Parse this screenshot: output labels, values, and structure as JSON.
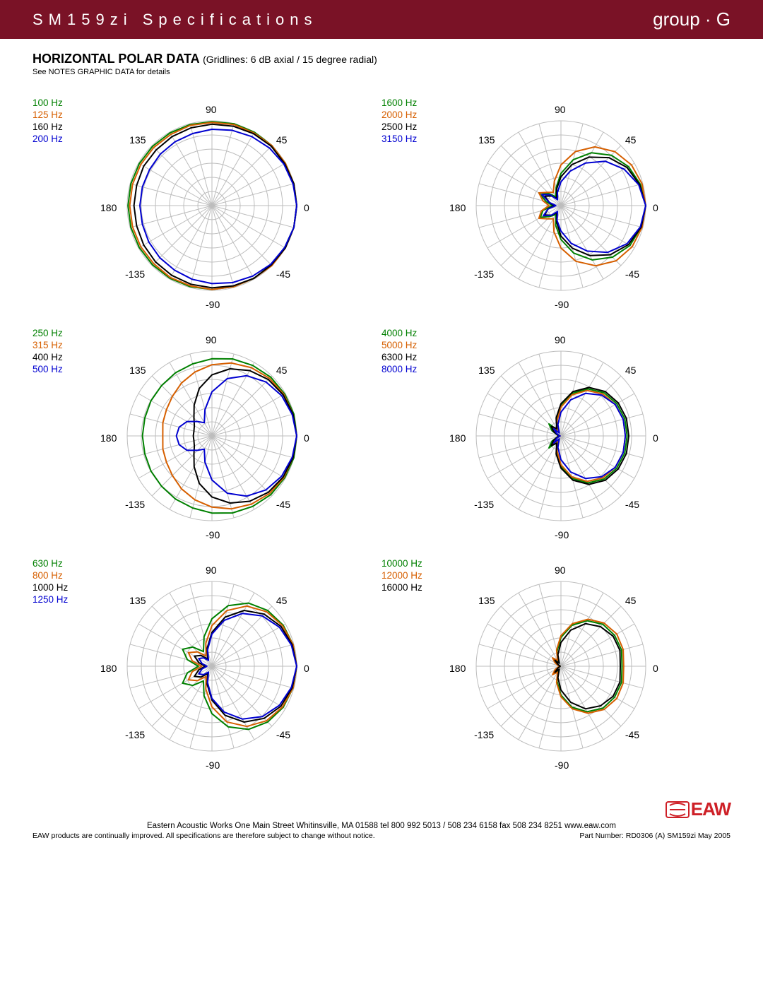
{
  "header": {
    "left": "SM159zi Specifications",
    "right": "group · G"
  },
  "section": {
    "title": "HORIZONTAL POLAR  DATA",
    "subtitle": "(Gridlines: 6 dB axial / 15 degree radial)",
    "notes": "See NOTES GRAPHIC DATA for details"
  },
  "colors": {
    "green": "#008000",
    "orange": "#d65f00",
    "black": "#000000",
    "blue": "#0000d0",
    "grid": "#bdbdbd",
    "axis_label": "#000000"
  },
  "polar": {
    "rings": 6,
    "radial_step_deg": 15,
    "angle_labels": [
      {
        "text": "90",
        "deg": 90
      },
      {
        "text": "45",
        "deg": 45
      },
      {
        "text": "0",
        "deg": 0
      },
      {
        "text": "-45",
        "deg": -45
      },
      {
        "text": "-90",
        "deg": -90
      },
      {
        "text": "-135",
        "deg": -135
      },
      {
        "text": "180",
        "deg": 180
      },
      {
        "text": "135",
        "deg": 135
      }
    ]
  },
  "charts": [
    {
      "legend": [
        {
          "label": "100 Hz",
          "color_key": "green"
        },
        {
          "label": "125 Hz",
          "color_key": "orange"
        },
        {
          "label": "160 Hz",
          "color_key": "black"
        },
        {
          "label": "200 Hz",
          "color_key": "blue"
        }
      ],
      "series": [
        {
          "color_key": "green",
          "r": [
            1.0,
            1.0,
            1.0,
            1.0,
            1.0,
            1.0,
            0.99,
            0.99,
            0.99,
            0.99,
            0.99,
            0.99,
            0.99,
            0.99,
            0.99,
            0.99,
            0.99,
            0.99,
            0.99,
            0.99,
            0.99,
            0.99,
            0.99,
            1.0
          ]
        },
        {
          "color_key": "orange",
          "r": [
            1.0,
            1.0,
            1.0,
            1.0,
            0.99,
            0.99,
            0.98,
            0.98,
            0.97,
            0.97,
            0.97,
            0.97,
            0.97,
            0.97,
            0.97,
            0.97,
            0.98,
            0.98,
            0.99,
            0.99,
            0.99,
            1.0,
            1.0,
            1.0
          ]
        },
        {
          "color_key": "black",
          "r": [
            1.0,
            1.0,
            0.99,
            0.99,
            0.98,
            0.97,
            0.96,
            0.95,
            0.94,
            0.93,
            0.93,
            0.92,
            0.92,
            0.92,
            0.93,
            0.94,
            0.95,
            0.96,
            0.97,
            0.98,
            0.99,
            0.99,
            1.0,
            1.0
          ]
        },
        {
          "color_key": "blue",
          "r": [
            1.0,
            0.99,
            0.98,
            0.96,
            0.94,
            0.92,
            0.9,
            0.88,
            0.87,
            0.86,
            0.85,
            0.85,
            0.85,
            0.85,
            0.86,
            0.87,
            0.88,
            0.9,
            0.92,
            0.94,
            0.96,
            0.98,
            0.99,
            1.0
          ]
        }
      ]
    },
    {
      "legend": [
        {
          "label": "1600 Hz",
          "color_key": "green"
        },
        {
          "label": "2000 Hz",
          "color_key": "orange"
        },
        {
          "label": "2500 Hz",
          "color_key": "black"
        },
        {
          "label": "3150 Hz",
          "color_key": "blue"
        }
      ],
      "series": [
        {
          "color_key": "green",
          "r": [
            1.0,
            0.97,
            0.92,
            0.84,
            0.72,
            0.56,
            0.38,
            0.22,
            0.12,
            0.2,
            0.3,
            0.18,
            0.1,
            0.22,
            0.28,
            0.18,
            0.12,
            0.24,
            0.4,
            0.58,
            0.74,
            0.86,
            0.94,
            0.98
          ]
        },
        {
          "color_key": "orange",
          "r": [
            1.0,
            0.99,
            0.96,
            0.9,
            0.8,
            0.66,
            0.48,
            0.3,
            0.18,
            0.22,
            0.3,
            0.22,
            0.14,
            0.24,
            0.3,
            0.22,
            0.18,
            0.32,
            0.5,
            0.68,
            0.82,
            0.92,
            0.97,
            0.99
          ]
        },
        {
          "color_key": "black",
          "r": [
            1.0,
            0.96,
            0.9,
            0.8,
            0.66,
            0.5,
            0.34,
            0.2,
            0.1,
            0.16,
            0.22,
            0.14,
            0.08,
            0.16,
            0.22,
            0.16,
            0.1,
            0.2,
            0.36,
            0.52,
            0.68,
            0.82,
            0.92,
            0.98
          ]
        },
        {
          "color_key": "blue",
          "r": [
            1.0,
            0.95,
            0.86,
            0.74,
            0.58,
            0.42,
            0.28,
            0.16,
            0.08,
            0.18,
            0.26,
            0.14,
            0.06,
            0.16,
            0.24,
            0.16,
            0.08,
            0.18,
            0.3,
            0.46,
            0.62,
            0.78,
            0.9,
            0.97
          ]
        }
      ]
    },
    {
      "legend": [
        {
          "label": "250 Hz",
          "color_key": "green"
        },
        {
          "label": "315 Hz",
          "color_key": "orange"
        },
        {
          "label": "400 Hz",
          "color_key": "black"
        },
        {
          "label": "500 Hz",
          "color_key": "blue"
        }
      ],
      "series": [
        {
          "color_key": "green",
          "r": [
            1.0,
            1.0,
            0.99,
            0.98,
            0.96,
            0.94,
            0.91,
            0.88,
            0.86,
            0.84,
            0.83,
            0.82,
            0.82,
            0.82,
            0.83,
            0.84,
            0.86,
            0.88,
            0.91,
            0.94,
            0.96,
            0.98,
            0.99,
            1.0
          ]
        },
        {
          "color_key": "orange",
          "r": [
            1.0,
            0.99,
            0.98,
            0.96,
            0.93,
            0.89,
            0.84,
            0.78,
            0.72,
            0.66,
            0.62,
            0.6,
            0.58,
            0.6,
            0.62,
            0.66,
            0.72,
            0.78,
            0.84,
            0.89,
            0.93,
            0.96,
            0.98,
            0.99
          ]
        },
        {
          "color_key": "black",
          "r": [
            1.0,
            0.99,
            0.97,
            0.94,
            0.89,
            0.82,
            0.72,
            0.58,
            0.42,
            0.3,
            0.24,
            0.22,
            0.22,
            0.22,
            0.24,
            0.3,
            0.42,
            0.58,
            0.72,
            0.82,
            0.89,
            0.94,
            0.97,
            0.99
          ]
        },
        {
          "color_key": "blue",
          "r": [
            1.0,
            0.98,
            0.95,
            0.9,
            0.82,
            0.7,
            0.52,
            0.32,
            0.18,
            0.24,
            0.34,
            0.4,
            0.42,
            0.4,
            0.34,
            0.24,
            0.18,
            0.32,
            0.52,
            0.7,
            0.82,
            0.9,
            0.95,
            0.98
          ]
        }
      ]
    },
    {
      "legend": [
        {
          "label": "4000 Hz",
          "color_key": "green"
        },
        {
          "label": "5000 Hz",
          "color_key": "orange"
        },
        {
          "label": "6300 Hz",
          "color_key": "black"
        },
        {
          "label": "8000 Hz",
          "color_key": "blue"
        }
      ],
      "series": [
        {
          "color_key": "green",
          "r": [
            0.78,
            0.78,
            0.76,
            0.72,
            0.64,
            0.52,
            0.36,
            0.2,
            0.08,
            0.2,
            0.12,
            0.04,
            0.02,
            0.04,
            0.12,
            0.2,
            0.08,
            0.2,
            0.36,
            0.52,
            0.64,
            0.72,
            0.76,
            0.78
          ]
        },
        {
          "color_key": "orange",
          "r": [
            0.76,
            0.76,
            0.74,
            0.7,
            0.62,
            0.5,
            0.34,
            0.18,
            0.06,
            0.14,
            0.08,
            0.02,
            0.01,
            0.02,
            0.08,
            0.14,
            0.06,
            0.18,
            0.34,
            0.5,
            0.62,
            0.7,
            0.74,
            0.76
          ]
        },
        {
          "color_key": "black",
          "r": [
            0.8,
            0.8,
            0.78,
            0.74,
            0.66,
            0.54,
            0.38,
            0.22,
            0.1,
            0.16,
            0.1,
            0.04,
            0.02,
            0.04,
            0.1,
            0.16,
            0.1,
            0.22,
            0.38,
            0.54,
            0.66,
            0.74,
            0.78,
            0.8
          ]
        },
        {
          "color_key": "blue",
          "r": [
            0.76,
            0.76,
            0.74,
            0.68,
            0.58,
            0.44,
            0.28,
            0.14,
            0.04,
            0.12,
            0.06,
            0.02,
            0.01,
            0.02,
            0.06,
            0.12,
            0.04,
            0.14,
            0.28,
            0.44,
            0.58,
            0.68,
            0.74,
            0.76
          ]
        }
      ]
    },
    {
      "legend": [
        {
          "label": "630 Hz",
          "color_key": "green"
        },
        {
          "label": "800 Hz",
          "color_key": "orange"
        },
        {
          "label": "1000 Hz",
          "color_key": "black"
        },
        {
          "label": "1250 Hz",
          "color_key": "blue"
        }
      ],
      "series": [
        {
          "color_key": "green",
          "r": [
            1.0,
            0.99,
            0.97,
            0.93,
            0.86,
            0.74,
            0.56,
            0.36,
            0.2,
            0.32,
            0.4,
            0.3,
            0.16,
            0.3,
            0.4,
            0.32,
            0.2,
            0.36,
            0.56,
            0.74,
            0.86,
            0.93,
            0.97,
            0.99
          ]
        },
        {
          "color_key": "orange",
          "r": [
            1.0,
            0.99,
            0.96,
            0.91,
            0.82,
            0.68,
            0.48,
            0.28,
            0.14,
            0.24,
            0.32,
            0.24,
            0.12,
            0.24,
            0.32,
            0.24,
            0.14,
            0.28,
            0.48,
            0.68,
            0.82,
            0.91,
            0.96,
            0.99
          ]
        },
        {
          "color_key": "black",
          "r": [
            1.0,
            0.98,
            0.94,
            0.87,
            0.76,
            0.6,
            0.4,
            0.22,
            0.1,
            0.18,
            0.24,
            0.16,
            0.08,
            0.16,
            0.24,
            0.18,
            0.1,
            0.22,
            0.4,
            0.6,
            0.76,
            0.87,
            0.94,
            0.98
          ]
        },
        {
          "color_key": "blue",
          "r": [
            1.0,
            0.97,
            0.92,
            0.84,
            0.72,
            0.56,
            0.38,
            0.2,
            0.08,
            0.14,
            0.18,
            0.12,
            0.06,
            0.12,
            0.18,
            0.14,
            0.08,
            0.2,
            0.38,
            0.56,
            0.72,
            0.84,
            0.92,
            0.97
          ]
        }
      ]
    },
    {
      "legend": [
        {
          "label": "10000 Hz",
          "color_key": "green"
        },
        {
          "label": "12000 Hz",
          "color_key": "orange"
        },
        {
          "label": "16000 Hz",
          "color_key": "black"
        }
      ],
      "series": [
        {
          "color_key": "green",
          "r": [
            0.72,
            0.74,
            0.73,
            0.7,
            0.62,
            0.5,
            0.34,
            0.18,
            0.06,
            0.12,
            0.06,
            0.02,
            0.01,
            0.02,
            0.06,
            0.12,
            0.06,
            0.18,
            0.34,
            0.5,
            0.62,
            0.7,
            0.73,
            0.74
          ]
        },
        {
          "color_key": "orange",
          "r": [
            0.74,
            0.76,
            0.76,
            0.72,
            0.64,
            0.52,
            0.36,
            0.2,
            0.08,
            0.14,
            0.08,
            0.03,
            0.01,
            0.03,
            0.08,
            0.14,
            0.08,
            0.2,
            0.36,
            0.52,
            0.64,
            0.72,
            0.76,
            0.76
          ]
        },
        {
          "color_key": "black",
          "r": [
            0.7,
            0.72,
            0.71,
            0.66,
            0.58,
            0.44,
            0.28,
            0.14,
            0.04,
            0.1,
            0.04,
            0.01,
            0.01,
            0.01,
            0.04,
            0.1,
            0.04,
            0.14,
            0.28,
            0.44,
            0.58,
            0.66,
            0.71,
            0.72
          ]
        }
      ]
    }
  ],
  "footer": {
    "logo_text": "EAW",
    "address": "Eastern Acoustic Works   One Main Street   Whitinsville, MA 01588   tel 800 992 5013 / 508 234 6158   fax 508 234 8251   www.eaw.com",
    "disclaimer": "EAW products are continually improved.  All specifications are therefore subject to change without notice.",
    "part": "Part Number:  RD0306 (A) SM159zi   May 2005"
  }
}
